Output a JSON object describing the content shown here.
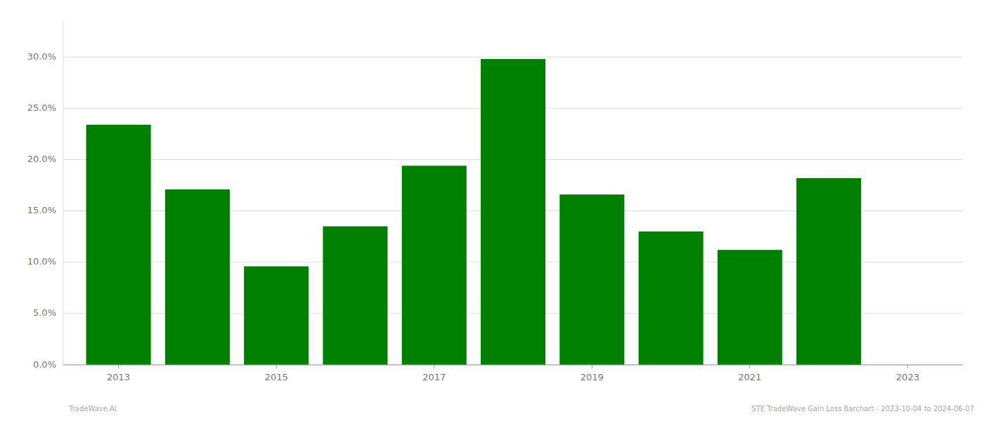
{
  "chart_data": {
    "type": "bar",
    "x": [
      2013,
      2014,
      2015,
      2016,
      2017,
      2018,
      2019,
      2020,
      2021,
      2022
    ],
    "values": [
      0.234,
      0.171,
      0.096,
      0.135,
      0.194,
      0.298,
      0.166,
      0.13,
      0.112,
      0.182
    ],
    "color": "#008000",
    "xlim": [
      2012.3,
      2023.7
    ],
    "xticks": [
      2013,
      2015,
      2017,
      2019,
      2021,
      2023
    ],
    "ylim": [
      0,
      0.335
    ],
    "yticks": [
      {
        "value": 0.0,
        "label": "0.0%"
      },
      {
        "value": 0.05,
        "label": "5.0%"
      },
      {
        "value": 0.1,
        "label": "10.0%"
      },
      {
        "value": 0.15,
        "label": "15.0%"
      },
      {
        "value": 0.2,
        "label": "20.0%"
      },
      {
        "value": 0.25,
        "label": "25.0%"
      },
      {
        "value": 0.3,
        "label": "30.0%"
      }
    ],
    "grid": true,
    "annotations": [
      "TradeWave.AI",
      "STE TradeWave Gain Loss Barchart - 2023-10-04 to 2024-06-07"
    ]
  }
}
